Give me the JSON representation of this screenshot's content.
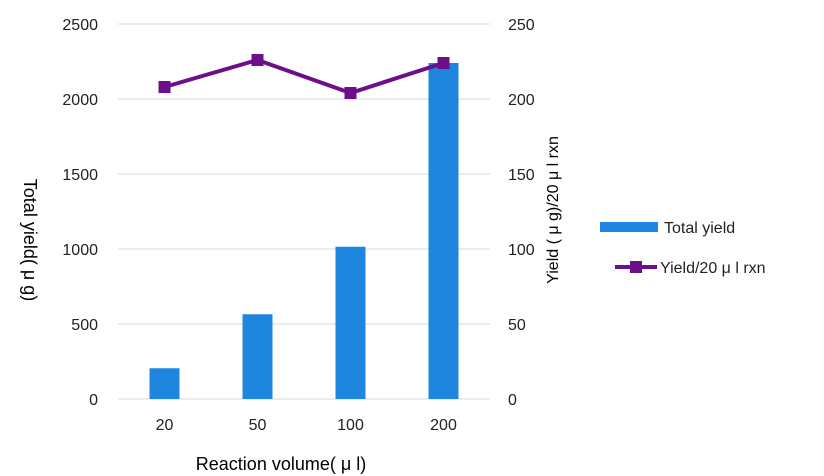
{
  "chart_data": {
    "type": "bar",
    "categories": [
      "20",
      "50",
      "100",
      "200"
    ],
    "series": [
      {
        "name": "Total yield",
        "type": "bar",
        "axis": "left",
        "color": "#1f86e0",
        "values": [
          205,
          565,
          1015,
          2240
        ]
      },
      {
        "name": "Yield/20  μ l rxn",
        "type": "line",
        "axis": "right",
        "color": "#6b0f8a",
        "marker": "square",
        "values": [
          208,
          226,
          204,
          224
        ]
      }
    ],
    "xlabel": "Reaction  volume( μ l)",
    "ylabel": "Total  yield( μ g)",
    "y2label": "Yield  ( μ g)/20  μ l rxn",
    "ylim": [
      0,
      2500
    ],
    "y2lim": [
      0,
      250
    ],
    "yticks": [
      "0",
      "500",
      "1000",
      "1500",
      "2000",
      "2500"
    ],
    "y2ticks": [
      "0",
      "50",
      "100",
      "150",
      "200",
      "250"
    ],
    "grid": "horizontal",
    "legend_position": "right"
  }
}
